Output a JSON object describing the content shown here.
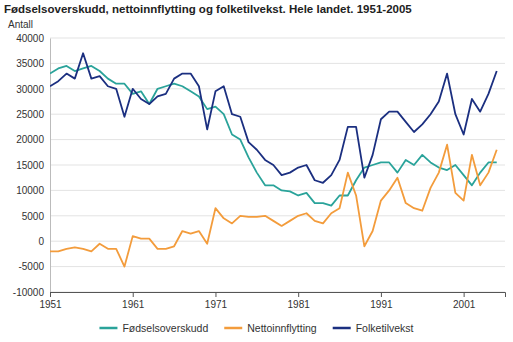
{
  "chart_data": {
    "type": "line",
    "title": "Fødselsoverskudd, nettoinnflytting og folketilvekst. Hele landet. 1951-2005",
    "y_label": "Antall",
    "x": [
      1951,
      1952,
      1953,
      1954,
      1955,
      1956,
      1957,
      1958,
      1959,
      1960,
      1961,
      1962,
      1963,
      1964,
      1965,
      1966,
      1967,
      1968,
      1969,
      1970,
      1971,
      1972,
      1973,
      1974,
      1975,
      1976,
      1977,
      1978,
      1979,
      1980,
      1981,
      1982,
      1983,
      1984,
      1985,
      1986,
      1987,
      1988,
      1989,
      1990,
      1991,
      1992,
      1993,
      1994,
      1995,
      1996,
      1997,
      1998,
      1999,
      2000,
      2001,
      2002,
      2003,
      2004,
      2005
    ],
    "series": [
      {
        "name": "Fødselsoverskudd",
        "color": "#2aa39a",
        "values": [
          33000,
          34000,
          34500,
          33500,
          34000,
          34500,
          33500,
          32000,
          31000,
          31000,
          29000,
          29500,
          27000,
          30000,
          30500,
          31000,
          30500,
          29500,
          28500,
          26000,
          26500,
          25000,
          21000,
          20000,
          16500,
          13500,
          11000,
          11000,
          10000,
          9800,
          9000,
          9500,
          7500,
          7500,
          7000,
          9000,
          9000,
          12000,
          14500,
          15000,
          15500,
          15500,
          13500,
          16000,
          15000,
          17000,
          15500,
          14500,
          14000,
          15000,
          13000,
          11000,
          13500,
          15500,
          15500
        ]
      },
      {
        "name": "Nettoinnflytting",
        "color": "#f39c3c",
        "values": [
          -2000,
          -2000,
          -1500,
          -1200,
          -1500,
          -2000,
          -500,
          -1500,
          -1500,
          -5000,
          1000,
          500,
          500,
          -1500,
          -1500,
          -1000,
          2000,
          1500,
          2000,
          -500,
          6500,
          4500,
          3500,
          5000,
          4800,
          4800,
          5000,
          4000,
          3000,
          4000,
          5000,
          5500,
          4000,
          3500,
          5500,
          6500,
          13500,
          9000,
          -1000,
          2000,
          8000,
          10000,
          12500,
          7500,
          6500,
          6000,
          10500,
          13500,
          19000,
          9500,
          8000,
          17000,
          11000,
          13500,
          18000
        ]
      },
      {
        "name": "Folketilvekst",
        "color": "#1b2f80",
        "values": [
          30500,
          31500,
          33000,
          32000,
          37000,
          32000,
          32500,
          30500,
          30000,
          24500,
          30000,
          28000,
          27000,
          28500,
          29000,
          32000,
          33000,
          33000,
          30500,
          22000,
          29500,
          30500,
          25000,
          24500,
          19500,
          18000,
          16000,
          15000,
          13000,
          13500,
          14500,
          15000,
          12000,
          11500,
          13000,
          16000,
          22500,
          22500,
          12500,
          17000,
          24000,
          25500,
          25500,
          23500,
          21500,
          23000,
          25000,
          27500,
          33000,
          25000,
          21000,
          28000,
          25500,
          29000,
          33500
        ]
      }
    ],
    "xlim": [
      1951,
      2006
    ],
    "xticks": [
      1951,
      1961,
      1971,
      1981,
      1991,
      2001
    ],
    "ylim": [
      -10000,
      40000
    ],
    "yticks": [
      -10000,
      -5000,
      0,
      5000,
      10000,
      15000,
      20000,
      25000,
      30000,
      35000,
      40000
    ],
    "grid": true,
    "legend": "bottom"
  }
}
